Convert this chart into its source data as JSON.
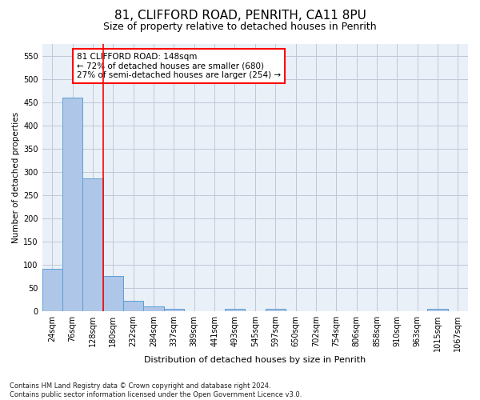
{
  "title1": "81, CLIFFORD ROAD, PENRITH, CA11 8PU",
  "title2": "Size of property relative to detached houses in Penrith",
  "xlabel": "Distribution of detached houses by size in Penrith",
  "ylabel": "Number of detached properties",
  "footnote1": "Contains HM Land Registry data © Crown copyright and database right 2024.",
  "footnote2": "Contains public sector information licensed under the Open Government Licence v3.0.",
  "bin_labels": [
    "24sqm",
    "76sqm",
    "128sqm",
    "180sqm",
    "232sqm",
    "284sqm",
    "337sqm",
    "389sqm",
    "441sqm",
    "493sqm",
    "545sqm",
    "597sqm",
    "650sqm",
    "702sqm",
    "754sqm",
    "806sqm",
    "858sqm",
    "910sqm",
    "963sqm",
    "1015sqm",
    "1067sqm"
  ],
  "bar_values": [
    92,
    460,
    286,
    76,
    22,
    10,
    6,
    0,
    0,
    6,
    0,
    6,
    0,
    0,
    0,
    0,
    0,
    0,
    0,
    6,
    0
  ],
  "bar_color": "#aec6e8",
  "bar_edge_color": "#5a9fd4",
  "vline_color": "red",
  "vline_x_index": 2.5,
  "annotation_text": "81 CLIFFORD ROAD: 148sqm\n← 72% of detached houses are smaller (680)\n27% of semi-detached houses are larger (254) →",
  "annotation_box_color": "white",
  "annotation_box_edgecolor": "red",
  "ylim": [
    0,
    575
  ],
  "yticks": [
    0,
    50,
    100,
    150,
    200,
    250,
    300,
    350,
    400,
    450,
    500,
    550
  ],
  "grid_color": "#c0c8d8",
  "bg_color": "#eaf0f8",
  "title1_fontsize": 11,
  "title2_fontsize": 9,
  "annot_fontsize": 7.5,
  "xlabel_fontsize": 8,
  "ylabel_fontsize": 7.5,
  "tick_fontsize": 7,
  "footnote_fontsize": 6
}
